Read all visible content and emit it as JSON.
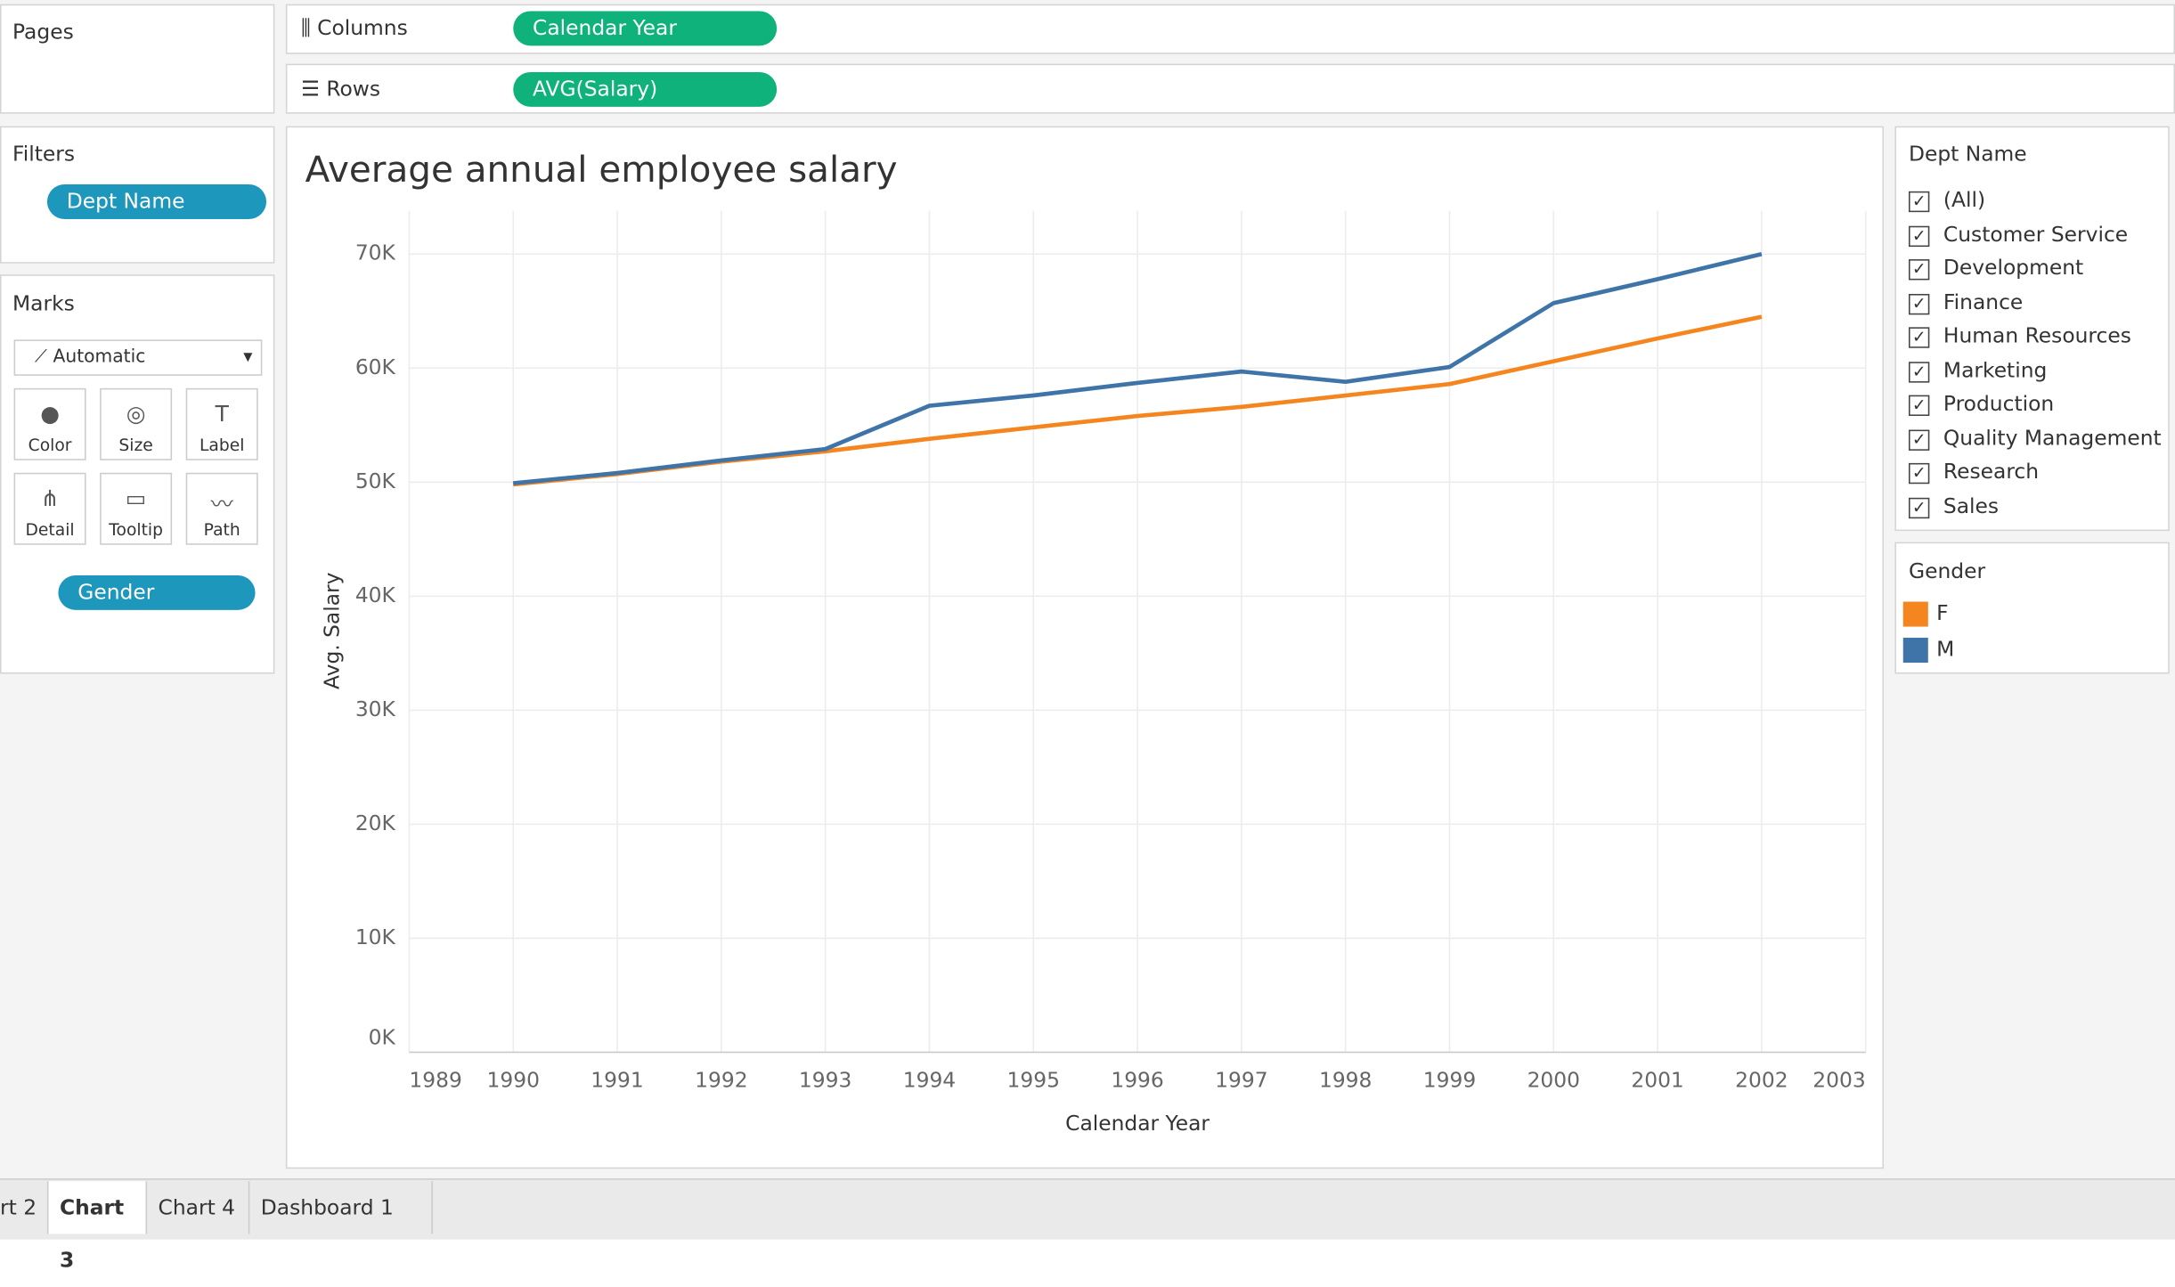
{
  "shelves": {
    "pages": "Pages",
    "columns_label": "Columns",
    "columns_pill": "Calendar Year",
    "rows_label": "Rows",
    "rows_pill": "AVG(Salary)"
  },
  "filters": {
    "title": "Filters",
    "pill": "Dept Name"
  },
  "marks": {
    "title": "Marks",
    "mark_type": "Automatic",
    "buttons": [
      "Color",
      "Size",
      "Label",
      "Detail",
      "Tooltip",
      "Path"
    ],
    "color_pill": "Gender"
  },
  "dept_filter": {
    "title": "Dept Name",
    "items": [
      "(All)",
      "Customer Service",
      "Development",
      "Finance",
      "Human Resources",
      "Marketing",
      "Production",
      "Quality Management",
      "Research",
      "Sales"
    ]
  },
  "tabs": [
    "rt 2",
    "Chart 3",
    "Chart 4",
    "Dashboard 1"
  ],
  "chart_data": {
    "type": "line",
    "title": "Average annual employee salary",
    "x_label": "Calendar Year",
    "y_label": "Avg. Salary",
    "legend_title": "Gender",
    "x": [
      1990,
      1991,
      1992,
      1993,
      1994,
      1995,
      1996,
      1997,
      1998,
      1999,
      2000,
      2001,
      2002
    ],
    "series": [
      {
        "name": "F",
        "color": "#f5861f",
        "values": [
          49800,
          50700,
          51800,
          52700,
          53800,
          54800,
          55800,
          56600,
          57600,
          58600,
          60600,
          62600,
          64500
        ]
      },
      {
        "name": "M",
        "color": "#3e74a8",
        "values": [
          49900,
          50800,
          51900,
          52900,
          56700,
          57600,
          58700,
          59700,
          58800,
          60100,
          65700,
          67800,
          70000
        ]
      }
    ],
    "xlim": [
      1989,
      2003
    ],
    "xticks": [
      1989,
      1990,
      1991,
      1992,
      1993,
      1994,
      1995,
      1996,
      1997,
      1998,
      1999,
      2000,
      2001,
      2002,
      2003
    ],
    "ylim": [
      0,
      73800
    ],
    "yticks": [
      {
        "value": 0,
        "label": "0K"
      },
      {
        "value": 10000,
        "label": "10K"
      },
      {
        "value": 20000,
        "label": "20K"
      },
      {
        "value": 30000,
        "label": "30K"
      },
      {
        "value": 40000,
        "label": "40K"
      },
      {
        "value": 50000,
        "label": "50K"
      },
      {
        "value": 60000,
        "label": "60K"
      },
      {
        "value": 70000,
        "label": "70K"
      }
    ],
    "grid": true
  }
}
